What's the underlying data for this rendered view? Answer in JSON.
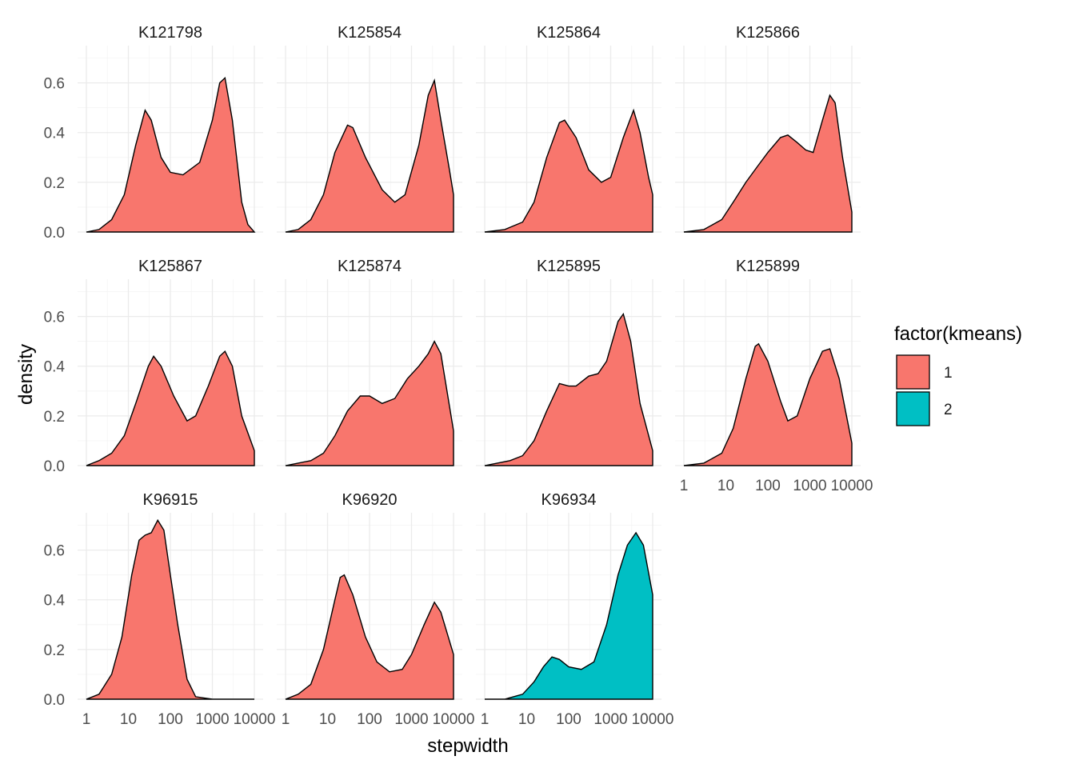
{
  "chart_data": {
    "type": "area",
    "xlabel": "stepwidth",
    "ylabel": "density",
    "x_scale": "log10",
    "xlim": [
      1,
      10000
    ],
    "ylim": [
      0,
      0.75
    ],
    "x_ticks": [
      1,
      10,
      100,
      1000,
      10000
    ],
    "x_tick_labels": [
      "1",
      "10",
      "100",
      "1000",
      "10000"
    ],
    "y_ticks": [
      0.0,
      0.2,
      0.4,
      0.6
    ],
    "y_tick_labels": [
      "0.0",
      "0.2",
      "0.4",
      "0.6"
    ],
    "grid": true,
    "legend": {
      "title": "factor(kmeans)",
      "position": "right",
      "entries": [
        {
          "label": "1",
          "color": "#F8766D"
        },
        {
          "label": "2",
          "color": "#00BFC4"
        }
      ]
    },
    "facets": [
      {
        "name": "K121798",
        "group": "1",
        "xmax": 10000,
        "points": [
          [
            1,
            0
          ],
          [
            2,
            0.01
          ],
          [
            4,
            0.05
          ],
          [
            8,
            0.15
          ],
          [
            15,
            0.35
          ],
          [
            25,
            0.49
          ],
          [
            35,
            0.45
          ],
          [
            60,
            0.3
          ],
          [
            100,
            0.24
          ],
          [
            200,
            0.23
          ],
          [
            500,
            0.28
          ],
          [
            1000,
            0.45
          ],
          [
            1500,
            0.6
          ],
          [
            2000,
            0.62
          ],
          [
            3000,
            0.45
          ],
          [
            5000,
            0.12
          ],
          [
            7000,
            0.03
          ],
          [
            10000,
            0
          ]
        ]
      },
      {
        "name": "K125854",
        "group": "1",
        "xmax": 10000,
        "points": [
          [
            1,
            0
          ],
          [
            2,
            0.01
          ],
          [
            4,
            0.05
          ],
          [
            8,
            0.15
          ],
          [
            15,
            0.32
          ],
          [
            30,
            0.43
          ],
          [
            40,
            0.42
          ],
          [
            80,
            0.3
          ],
          [
            200,
            0.17
          ],
          [
            400,
            0.12
          ],
          [
            700,
            0.15
          ],
          [
            1500,
            0.35
          ],
          [
            2500,
            0.55
          ],
          [
            3500,
            0.61
          ],
          [
            5000,
            0.45
          ],
          [
            8000,
            0.25
          ],
          [
            10000,
            0.15
          ]
        ]
      },
      {
        "name": "K125864",
        "group": "1",
        "xmax": 10000,
        "points": [
          [
            1,
            0
          ],
          [
            3,
            0.01
          ],
          [
            8,
            0.04
          ],
          [
            15,
            0.12
          ],
          [
            30,
            0.3
          ],
          [
            60,
            0.44
          ],
          [
            80,
            0.45
          ],
          [
            150,
            0.38
          ],
          [
            300,
            0.25
          ],
          [
            600,
            0.2
          ],
          [
            1000,
            0.22
          ],
          [
            2000,
            0.38
          ],
          [
            3500,
            0.49
          ],
          [
            5000,
            0.4
          ],
          [
            8000,
            0.22
          ],
          [
            10000,
            0.15
          ]
        ]
      },
      {
        "name": "K125866",
        "group": "1",
        "xmax": 10000,
        "points": [
          [
            1,
            0
          ],
          [
            3,
            0.01
          ],
          [
            8,
            0.05
          ],
          [
            15,
            0.12
          ],
          [
            30,
            0.2
          ],
          [
            60,
            0.27
          ],
          [
            100,
            0.32
          ],
          [
            200,
            0.38
          ],
          [
            300,
            0.39
          ],
          [
            500,
            0.36
          ],
          [
            800,
            0.33
          ],
          [
            1200,
            0.32
          ],
          [
            2000,
            0.45
          ],
          [
            3000,
            0.55
          ],
          [
            4000,
            0.52
          ],
          [
            6000,
            0.3
          ],
          [
            10000,
            0.08
          ]
        ]
      },
      {
        "name": "K125867",
        "group": "1",
        "xmax": 10000,
        "points": [
          [
            1,
            0
          ],
          [
            2,
            0.02
          ],
          [
            4,
            0.05
          ],
          [
            8,
            0.12
          ],
          [
            15,
            0.25
          ],
          [
            30,
            0.4
          ],
          [
            40,
            0.44
          ],
          [
            60,
            0.4
          ],
          [
            120,
            0.28
          ],
          [
            250,
            0.18
          ],
          [
            400,
            0.2
          ],
          [
            800,
            0.32
          ],
          [
            1500,
            0.44
          ],
          [
            2000,
            0.46
          ],
          [
            3000,
            0.4
          ],
          [
            5000,
            0.2
          ],
          [
            10000,
            0.06
          ]
        ]
      },
      {
        "name": "K125874",
        "group": "1",
        "xmax": 10000,
        "points": [
          [
            1,
            0
          ],
          [
            2,
            0.01
          ],
          [
            4,
            0.02
          ],
          [
            8,
            0.05
          ],
          [
            15,
            0.12
          ],
          [
            30,
            0.22
          ],
          [
            60,
            0.28
          ],
          [
            100,
            0.28
          ],
          [
            200,
            0.25
          ],
          [
            400,
            0.27
          ],
          [
            800,
            0.35
          ],
          [
            1500,
            0.4
          ],
          [
            2500,
            0.45
          ],
          [
            3500,
            0.5
          ],
          [
            5000,
            0.45
          ],
          [
            10000,
            0.14
          ]
        ]
      },
      {
        "name": "K125895",
        "group": "1",
        "xmax": 10000,
        "points": [
          [
            1,
            0
          ],
          [
            2,
            0.01
          ],
          [
            4,
            0.02
          ],
          [
            8,
            0.04
          ],
          [
            15,
            0.1
          ],
          [
            30,
            0.22
          ],
          [
            60,
            0.33
          ],
          [
            100,
            0.32
          ],
          [
            150,
            0.32
          ],
          [
            300,
            0.36
          ],
          [
            500,
            0.37
          ],
          [
            800,
            0.42
          ],
          [
            1500,
            0.58
          ],
          [
            2000,
            0.61
          ],
          [
            3000,
            0.5
          ],
          [
            5000,
            0.25
          ],
          [
            10000,
            0.06
          ]
        ]
      },
      {
        "name": "K125899",
        "group": "1",
        "xmax": 10000,
        "points": [
          [
            1,
            0
          ],
          [
            3,
            0.01
          ],
          [
            8,
            0.05
          ],
          [
            15,
            0.15
          ],
          [
            30,
            0.35
          ],
          [
            50,
            0.48
          ],
          [
            60,
            0.49
          ],
          [
            100,
            0.42
          ],
          [
            200,
            0.26
          ],
          [
            300,
            0.18
          ],
          [
            500,
            0.2
          ],
          [
            1000,
            0.35
          ],
          [
            2000,
            0.46
          ],
          [
            3000,
            0.47
          ],
          [
            5000,
            0.35
          ],
          [
            10000,
            0.09
          ]
        ]
      },
      {
        "name": "K96915",
        "group": "1",
        "xmax": 10000,
        "points": [
          [
            1,
            0
          ],
          [
            2,
            0.02
          ],
          [
            4,
            0.1
          ],
          [
            7,
            0.25
          ],
          [
            12,
            0.5
          ],
          [
            18,
            0.64
          ],
          [
            25,
            0.66
          ],
          [
            35,
            0.67
          ],
          [
            50,
            0.72
          ],
          [
            70,
            0.68
          ],
          [
            100,
            0.5
          ],
          [
            150,
            0.3
          ],
          [
            250,
            0.08
          ],
          [
            400,
            0.01
          ],
          [
            1000,
            0
          ],
          [
            3000,
            0
          ],
          [
            10000,
            0
          ]
        ]
      },
      {
        "name": "K96920",
        "group": "1",
        "xmax": 10000,
        "points": [
          [
            1,
            0
          ],
          [
            2,
            0.02
          ],
          [
            4,
            0.06
          ],
          [
            8,
            0.2
          ],
          [
            15,
            0.4
          ],
          [
            20,
            0.49
          ],
          [
            25,
            0.5
          ],
          [
            40,
            0.42
          ],
          [
            80,
            0.25
          ],
          [
            150,
            0.15
          ],
          [
            300,
            0.11
          ],
          [
            600,
            0.12
          ],
          [
            1000,
            0.18
          ],
          [
            2000,
            0.3
          ],
          [
            3500,
            0.39
          ],
          [
            5000,
            0.35
          ],
          [
            10000,
            0.18
          ]
        ]
      },
      {
        "name": "K96934",
        "group": "2",
        "xmax": 10000,
        "points": [
          [
            1,
            0
          ],
          [
            3,
            0
          ],
          [
            8,
            0.02
          ],
          [
            15,
            0.07
          ],
          [
            25,
            0.13
          ],
          [
            40,
            0.17
          ],
          [
            60,
            0.16
          ],
          [
            100,
            0.13
          ],
          [
            200,
            0.12
          ],
          [
            400,
            0.15
          ],
          [
            800,
            0.3
          ],
          [
            1500,
            0.5
          ],
          [
            2500,
            0.62
          ],
          [
            4000,
            0.67
          ],
          [
            6000,
            0.62
          ],
          [
            10000,
            0.42
          ]
        ]
      }
    ]
  }
}
